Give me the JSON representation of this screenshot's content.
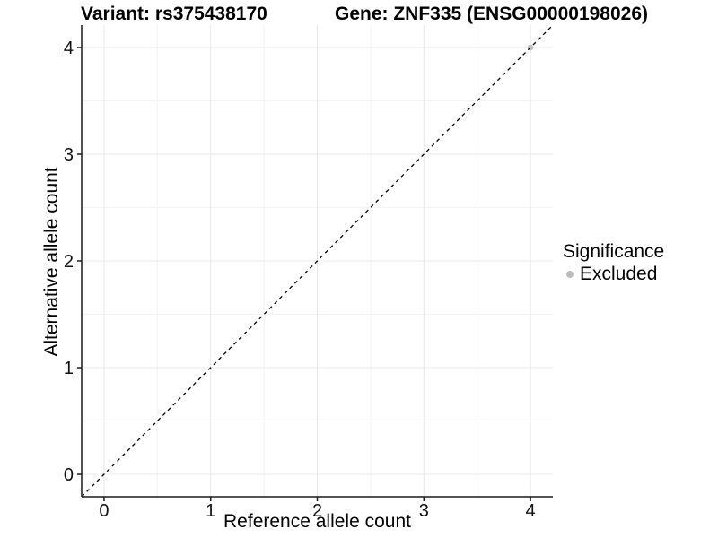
{
  "header": {
    "variant_title": "Variant: rs375438170",
    "gene_title": "Gene: ZNF335 (ENSG00000198026)"
  },
  "chart_data": {
    "type": "scatter",
    "xlabel": "Reference allele count",
    "ylabel": "Alternative allele count",
    "xlim": [
      -0.21,
      4.21
    ],
    "ylim": [
      -0.21,
      4.21
    ],
    "x_ticks": [
      0,
      1,
      2,
      3,
      4
    ],
    "y_ticks": [
      0,
      1,
      2,
      3,
      4
    ],
    "grid": {
      "major": true,
      "minor": true,
      "major_color": "#e8e8e8",
      "minor_color": "#f3f3f3"
    },
    "reference_line": {
      "type": "identity",
      "equation": "y = x",
      "from": [
        -0.21,
        -0.21
      ],
      "to": [
        4.21,
        4.21
      ],
      "style": "dashed",
      "color": "#000000"
    },
    "series": [
      {
        "name": "Excluded",
        "color": "#bebebe",
        "points": [
          {
            "x": 4,
            "y": 4
          }
        ]
      }
    ],
    "legend": {
      "title": "Significance",
      "position": "right",
      "entries": [
        {
          "label": "Excluded",
          "color": "#bebebe"
        }
      ]
    }
  },
  "colors": {
    "axis_line": "#1a1a1a",
    "tick_text": "#111111",
    "background": "#ffffff"
  }
}
